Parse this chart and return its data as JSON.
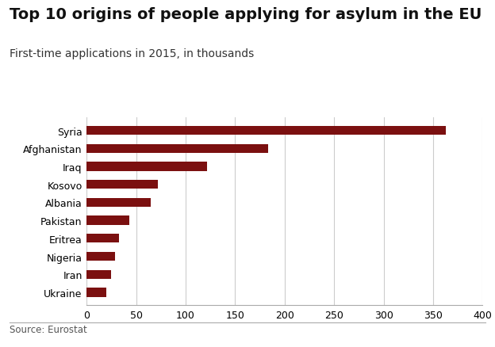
{
  "title": "Top 10 origins of people applying for asylum in the EU",
  "subtitle": "First-time applications in 2015, in thousands",
  "source": "Source: Eurostat",
  "categories": [
    "Ukraine",
    "Iran",
    "Nigeria",
    "Eritrea",
    "Pakistan",
    "Albania",
    "Kosovo",
    "Iraq",
    "Afghanistan",
    "Syria"
  ],
  "values": [
    20,
    25,
    29,
    33,
    43,
    65,
    72,
    122,
    183,
    363
  ],
  "bar_color": "#7b1010",
  "background_color": "#ffffff",
  "xlim": [
    0,
    400
  ],
  "xticks": [
    0,
    50,
    100,
    150,
    200,
    250,
    300,
    350,
    400
  ],
  "grid_color": "#cccccc",
  "title_fontsize": 14,
  "subtitle_fontsize": 10,
  "tick_fontsize": 9,
  "source_fontsize": 8.5,
  "bar_height": 0.5
}
